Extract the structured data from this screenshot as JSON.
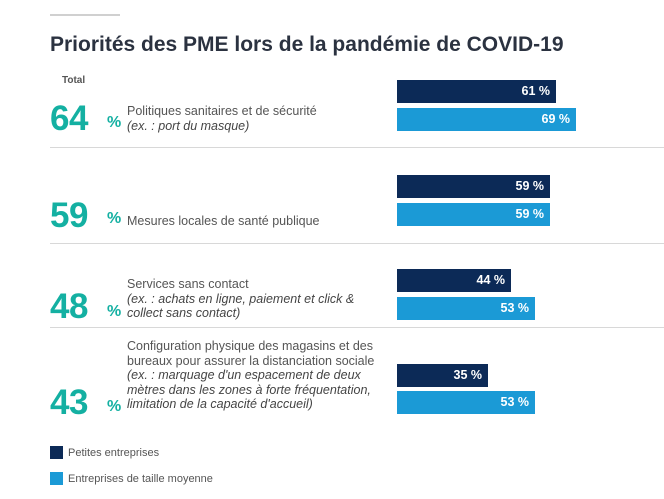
{
  "title": "Priorités des PME lors de la pandémie de COVID-19",
  "total_label": "Total",
  "percent_sign": "%",
  "colors": {
    "small": "#0c2a57",
    "medium": "#1b9ad6",
    "accent": "#14b0a2"
  },
  "chart_data": {
    "type": "bar",
    "orientation": "horizontal",
    "title": "Priorités des PME lors de la pandémie de COVID-19",
    "categories": [
      "Politiques sanitaires et de sécurité",
      "Mesures locales de santé publique",
      "Services sans contact",
      "Configuration physique des magasins et des bureaux pour assurer la distanciation sociale"
    ],
    "totals": [
      64,
      59,
      48,
      43
    ],
    "series": [
      {
        "name": "Petites entreprises",
        "values": [
          61,
          59,
          44,
          35
        ],
        "labels": [
          "61 %",
          "59 %",
          "44 %",
          "35 %"
        ]
      },
      {
        "name": "Entreprises de taille moyenne",
        "values": [
          69,
          59,
          53,
          53
        ],
        "labels": [
          "69 %",
          "59 %",
          "53 %",
          "53 %"
        ]
      }
    ],
    "xlim": [
      0,
      100
    ],
    "legend": "bottom-left"
  },
  "rows": [
    {
      "total": "64",
      "label": "Politiques sanitaires et de sécurité",
      "example": "(ex. : port du masque)"
    },
    {
      "total": "59",
      "label": "Mesures locales de santé publique",
      "example": ""
    },
    {
      "total": "48",
      "label": "Services sans contact",
      "example": "(ex. : achats en ligne, paiement et click & collect sans contact)"
    },
    {
      "total": "43",
      "label": "Configuration physique des magasins et des bureaux pour assurer la distanciation sociale",
      "example": "(ex. : marquage d'un espacement de deux mètres dans les zones à forte fréquentation, limitation de la capacité d'accueil)"
    }
  ],
  "legend": [
    {
      "name": "Petites entreprises",
      "color": "#0c2a57"
    },
    {
      "name": "Entreprises de taille moyenne",
      "color": "#1b9ad6"
    }
  ]
}
